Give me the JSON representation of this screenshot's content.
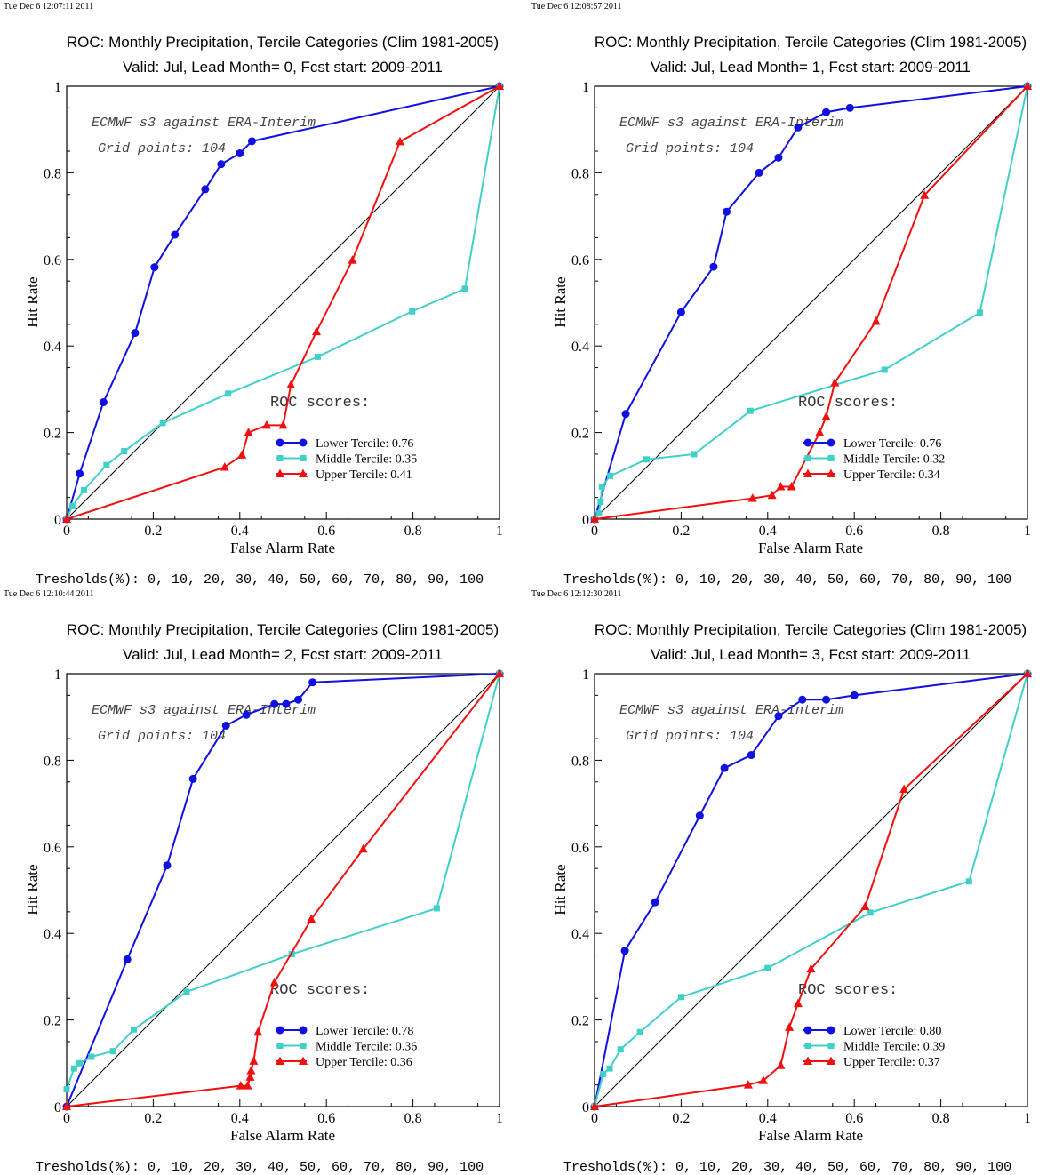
{
  "common": {
    "title_line1": "ROC: Monthly Precipitation, Tercile Categories (Clim 1981-2005)",
    "xlabel": "False Alarm Rate",
    "ylabel": "Hit Rate",
    "annotation_line1": "ECMWF s3 against ERA-Interim",
    "annotation_line2": "Grid points:  104",
    "roc_heading": "ROC scores:",
    "thresholds_text": "Tresholds(%): 0, 10, 20, 30, 40, 50, 60, 70, 80, 90, 100",
    "xticks": [
      "0",
      "0.2",
      "0.4",
      "0.6",
      "0.8",
      "1"
    ],
    "yticks": [
      "0",
      "0.2",
      "0.4",
      "0.6",
      "0.8",
      "1"
    ],
    "colors": {
      "lower": "#1010e0",
      "middle": "#40d0c8",
      "upper": "#f01010",
      "diagonal": "#000000"
    }
  },
  "panels": [
    {
      "timestamp": "Tue Dec  6 12:07:11 2011",
      "title_line2": "Valid: Jul, Lead Month= 0, Fcst start: 2009-2011",
      "legend": [
        "Lower Tercile: 0.76",
        "Middle Tercile: 0.35",
        "Upper Tercile: 0.41"
      ]
    },
    {
      "timestamp": "Tue Dec  6 12:08:57 2011",
      "title_line2": "Valid: Jul, Lead Month= 1, Fcst start: 2009-2011",
      "legend": [
        "Lower Tercile: 0.76",
        "Middle Tercile: 0.32",
        "Upper Tercile: 0.34"
      ]
    },
    {
      "timestamp": "Tue Dec  6 12:10:44 2011",
      "title_line2": "Valid: Jul, Lead Month= 2, Fcst start: 2009-2011",
      "legend": [
        "Lower Tercile: 0.78",
        "Middle Tercile: 0.36",
        "Upper Tercile: 0.36"
      ]
    },
    {
      "timestamp": "Tue Dec  6 12:12:30 2011",
      "title_line2": "Valid: Jul, Lead Month= 3, Fcst start: 2009-2011",
      "legend": [
        "Lower Tercile: 0.80",
        "Middle Tercile: 0.39",
        "Upper Tercile: 0.37"
      ]
    }
  ],
  "chart_data": [
    {
      "type": "line",
      "title": "ROC: Monthly Precipitation, Tercile Categories (Clim 1981-2005)",
      "xlabel": "False Alarm Rate",
      "ylabel": "Hit Rate",
      "xlim": [
        0,
        1
      ],
      "ylim": [
        0,
        1
      ],
      "series": [
        {
          "name": "Lower Tercile",
          "score": 0.76,
          "marker": "circle",
          "points": [
            [
              0,
              0
            ],
            [
              0.03,
              0.105
            ],
            [
              0.085,
              0.27
            ],
            [
              0.158,
              0.43
            ],
            [
              0.203,
              0.582
            ],
            [
              0.25,
              0.657
            ],
            [
              0.32,
              0.762
            ],
            [
              0.357,
              0.82
            ],
            [
              0.4,
              0.845
            ],
            [
              0.428,
              0.873
            ],
            [
              1,
              1
            ]
          ]
        },
        {
          "name": "Middle Tercile",
          "score": 0.35,
          "marker": "square",
          "points": [
            [
              0,
              0
            ],
            [
              0.013,
              0.03
            ],
            [
              0.04,
              0.067
            ],
            [
              0.092,
              0.125
            ],
            [
              0.133,
              0.157
            ],
            [
              0.222,
              0.222
            ],
            [
              0.373,
              0.29
            ],
            [
              0.58,
              0.375
            ],
            [
              0.798,
              0.48
            ],
            [
              0.92,
              0.532
            ],
            [
              1,
              1
            ]
          ]
        },
        {
          "name": "Upper Tercile",
          "score": 0.41,
          "marker": "triangle",
          "points": [
            [
              0,
              0
            ],
            [
              0.365,
              0.12
            ],
            [
              0.405,
              0.148
            ],
            [
              0.42,
              0.2
            ],
            [
              0.462,
              0.217
            ],
            [
              0.5,
              0.217
            ],
            [
              0.518,
              0.31
            ],
            [
              0.577,
              0.433
            ],
            [
              0.66,
              0.598
            ],
            [
              0.77,
              0.872
            ],
            [
              1,
              1
            ]
          ]
        }
      ]
    },
    {
      "type": "line",
      "title": "ROC: Monthly Precipitation, Tercile Categories (Clim 1981-2005)",
      "xlabel": "False Alarm Rate",
      "ylabel": "Hit Rate",
      "xlim": [
        0,
        1
      ],
      "ylim": [
        0,
        1
      ],
      "series": [
        {
          "name": "Lower Tercile",
          "score": 0.76,
          "marker": "circle",
          "points": [
            [
              0,
              0
            ],
            [
              0.072,
              0.243
            ],
            [
              0.2,
              0.478
            ],
            [
              0.275,
              0.583
            ],
            [
              0.305,
              0.71
            ],
            [
              0.38,
              0.8
            ],
            [
              0.425,
              0.835
            ],
            [
              0.47,
              0.905
            ],
            [
              0.535,
              0.94
            ],
            [
              0.59,
              0.95
            ],
            [
              1,
              1
            ]
          ]
        },
        {
          "name": "Middle Tercile",
          "score": 0.32,
          "marker": "square",
          "points": [
            [
              0,
              0
            ],
            [
              0.01,
              0.013
            ],
            [
              0.014,
              0.04
            ],
            [
              0.017,
              0.075
            ],
            [
              0.036,
              0.1
            ],
            [
              0.12,
              0.138
            ],
            [
              0.23,
              0.15
            ],
            [
              0.36,
              0.25
            ],
            [
              0.67,
              0.345
            ],
            [
              0.89,
              0.477
            ],
            [
              1,
              1
            ]
          ]
        },
        {
          "name": "Upper Tercile",
          "score": 0.34,
          "marker": "triangle",
          "points": [
            [
              0,
              0
            ],
            [
              0.365,
              0.048
            ],
            [
              0.41,
              0.055
            ],
            [
              0.43,
              0.075
            ],
            [
              0.455,
              0.075
            ],
            [
              0.52,
              0.2
            ],
            [
              0.535,
              0.237
            ],
            [
              0.555,
              0.315
            ],
            [
              0.65,
              0.457
            ],
            [
              0.762,
              0.748
            ],
            [
              1,
              1
            ]
          ]
        }
      ]
    },
    {
      "type": "line",
      "title": "ROC: Monthly Precipitation, Tercile Categories (Clim 1981-2005)",
      "xlabel": "False Alarm Rate",
      "ylabel": "Hit Rate",
      "xlim": [
        0,
        1
      ],
      "ylim": [
        0,
        1
      ],
      "series": [
        {
          "name": "Lower Tercile",
          "score": 0.78,
          "marker": "circle",
          "points": [
            [
              0,
              0
            ],
            [
              0.14,
              0.34
            ],
            [
              0.232,
              0.557
            ],
            [
              0.292,
              0.757
            ],
            [
              0.368,
              0.88
            ],
            [
              0.415,
              0.905
            ],
            [
              0.48,
              0.93
            ],
            [
              0.507,
              0.93
            ],
            [
              0.535,
              0.94
            ],
            [
              0.568,
              0.98
            ],
            [
              1,
              1
            ]
          ]
        },
        {
          "name": "Middle Tercile",
          "score": 0.36,
          "marker": "square",
          "points": [
            [
              0,
              0.04
            ],
            [
              0.017,
              0.088
            ],
            [
              0.03,
              0.1
            ],
            [
              0.057,
              0.115
            ],
            [
              0.107,
              0.128
            ],
            [
              0.155,
              0.178
            ],
            [
              0.277,
              0.265
            ],
            [
              0.52,
              0.352
            ],
            [
              0.855,
              0.458
            ],
            [
              1,
              1
            ]
          ]
        },
        {
          "name": "Upper Tercile",
          "score": 0.36,
          "marker": "triangle",
          "points": [
            [
              0,
              0
            ],
            [
              0.402,
              0.048
            ],
            [
              0.418,
              0.048
            ],
            [
              0.424,
              0.068
            ],
            [
              0.426,
              0.083
            ],
            [
              0.432,
              0.105
            ],
            [
              0.442,
              0.172
            ],
            [
              0.48,
              0.287
            ],
            [
              0.565,
              0.433
            ],
            [
              0.685,
              0.595
            ],
            [
              1,
              1
            ]
          ]
        }
      ]
    },
    {
      "type": "line",
      "title": "ROC: Monthly Precipitation, Tercile Categories (Clim 1981-2005)",
      "xlabel": "False Alarm Rate",
      "ylabel": "Hit Rate",
      "xlim": [
        0,
        1
      ],
      "ylim": [
        0,
        1
      ],
      "series": [
        {
          "name": "Lower Tercile",
          "score": 0.8,
          "marker": "circle",
          "points": [
            [
              0,
              0
            ],
            [
              0.07,
              0.36
            ],
            [
              0.14,
              0.472
            ],
            [
              0.243,
              0.672
            ],
            [
              0.3,
              0.782
            ],
            [
              0.362,
              0.812
            ],
            [
              0.425,
              0.902
            ],
            [
              0.48,
              0.94
            ],
            [
              0.535,
              0.94
            ],
            [
              0.6,
              0.95
            ],
            [
              1,
              1
            ]
          ]
        },
        {
          "name": "Middle Tercile",
          "score": 0.39,
          "marker": "square",
          "points": [
            [
              0,
              0
            ],
            [
              0.02,
              0.075
            ],
            [
              0.035,
              0.088
            ],
            [
              0.06,
              0.132
            ],
            [
              0.105,
              0.172
            ],
            [
              0.2,
              0.253
            ],
            [
              0.4,
              0.32
            ],
            [
              0.637,
              0.448
            ],
            [
              0.865,
              0.52
            ],
            [
              1,
              1
            ]
          ]
        },
        {
          "name": "Upper Tercile",
          "score": 0.37,
          "marker": "triangle",
          "points": [
            [
              0,
              0
            ],
            [
              0.355,
              0.05
            ],
            [
              0.39,
              0.06
            ],
            [
              0.43,
              0.095
            ],
            [
              0.45,
              0.183
            ],
            [
              0.47,
              0.238
            ],
            [
              0.5,
              0.318
            ],
            [
              0.625,
              0.462
            ],
            [
              0.715,
              0.733
            ],
            [
              1,
              1
            ]
          ]
        }
      ]
    }
  ]
}
